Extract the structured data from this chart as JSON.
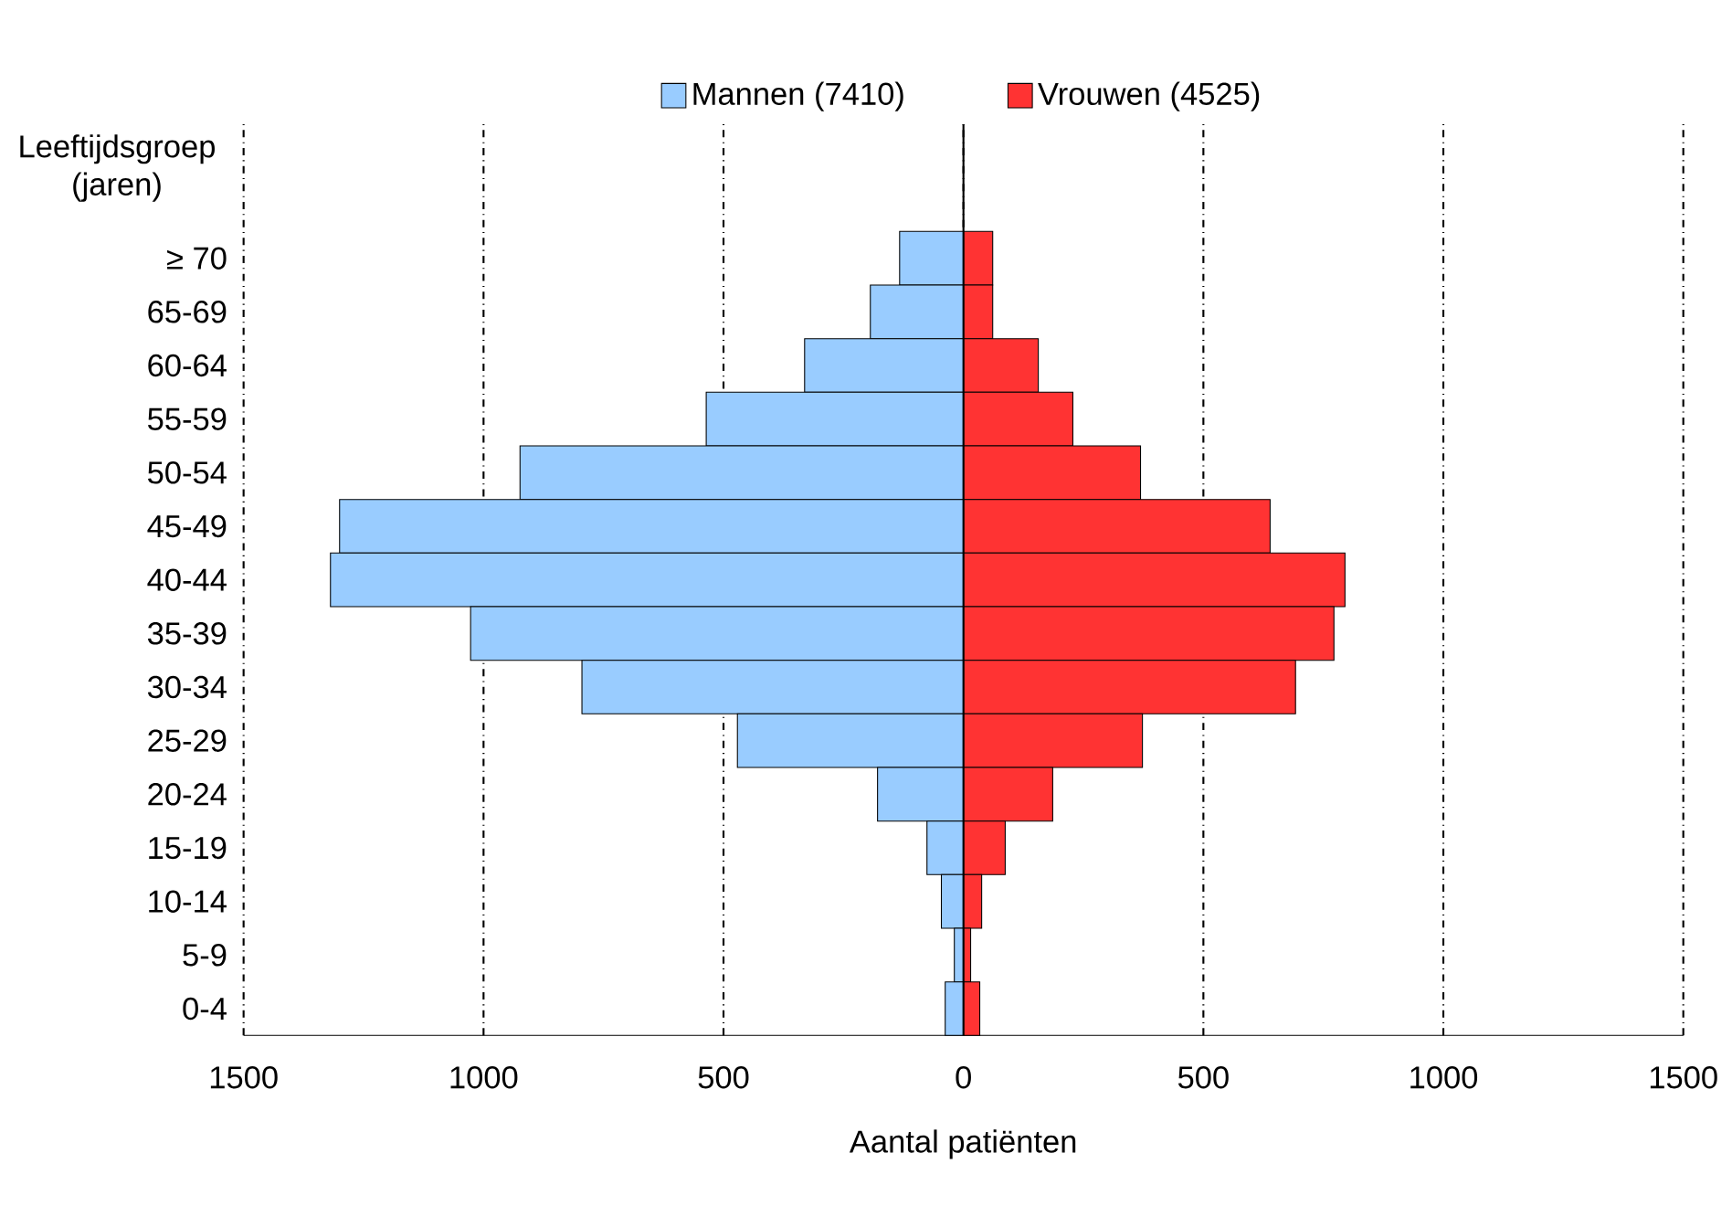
{
  "chart_data": {
    "type": "bar",
    "orientation": "horizontal",
    "xlabel": "Aantal patiënten",
    "ylabel": "Leeftijdsgroep (jaren)",
    "categories": [
      "≥ 70",
      "65-69",
      "60-64",
      "55-59",
      "50-54",
      "45-49",
      "40-44",
      "35-39",
      "30-34",
      "25-29",
      "20-24",
      "15-19",
      "10-14",
      "5-9",
      "0-4"
    ],
    "series": [
      {
        "name": "Mannen (7410)",
        "color": "#99ccff",
        "values": [
          -133,
          -194,
          -331,
          -536,
          -924,
          -1300,
          -1319,
          -1027,
          -795,
          -471,
          -179,
          -76,
          -46,
          -19,
          -38
        ]
      },
      {
        "name": "Vrouwen (4525)",
        "color": "#ff3333",
        "values": [
          61,
          61,
          156,
          228,
          369,
          639,
          795,
          772,
          692,
          373,
          186,
          87,
          38,
          15,
          34
        ]
      }
    ],
    "xlim": [
      -1500,
      1500
    ],
    "xticks": [
      {
        "value": -1500,
        "label": "1500"
      },
      {
        "value": -1000,
        "label": "1000"
      },
      {
        "value": -500,
        "label": "500"
      },
      0,
      500,
      1000,
      1500
    ],
    "grid": "x",
    "legend": "top",
    "stacked": true
  }
}
